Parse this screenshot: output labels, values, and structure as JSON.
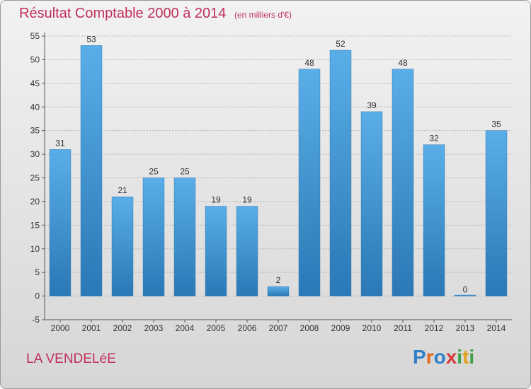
{
  "header": {
    "title": "Résultat Comptable 2000 à 2014",
    "subtitle": "(en milliers d'€)"
  },
  "footer": {
    "commune": "LA VENDELéE",
    "logo": [
      "P",
      "r",
      "o",
      "x",
      "i",
      "t",
      "i"
    ]
  },
  "colors": {
    "title": "#c0305a",
    "bar_light": "#5aaee8",
    "bar_dark": "#2a78b5",
    "logo": [
      "#2f7fc8",
      "#e0661b",
      "#2f7fc8",
      "#d63a3a",
      "#3aa048",
      "#e0a21b",
      "#3aa048"
    ]
  },
  "chart_data": {
    "type": "bar",
    "title": "Résultat Comptable 2000 à 2014",
    "ylabel": "",
    "xlabel": "",
    "ylim": [
      -5,
      55
    ],
    "yticks": [
      -5,
      0,
      5,
      10,
      15,
      20,
      25,
      30,
      35,
      40,
      45,
      50,
      55
    ],
    "grid": true,
    "categories": [
      "2000",
      "2001",
      "2002",
      "2003",
      "2004",
      "2005",
      "2006",
      "2007",
      "2008",
      "2009",
      "2010",
      "2011",
      "2012",
      "2013",
      "2014"
    ],
    "values": [
      31,
      53,
      21,
      25,
      25,
      19,
      19,
      2,
      48,
      52,
      39,
      48,
      32,
      0,
      35
    ]
  }
}
